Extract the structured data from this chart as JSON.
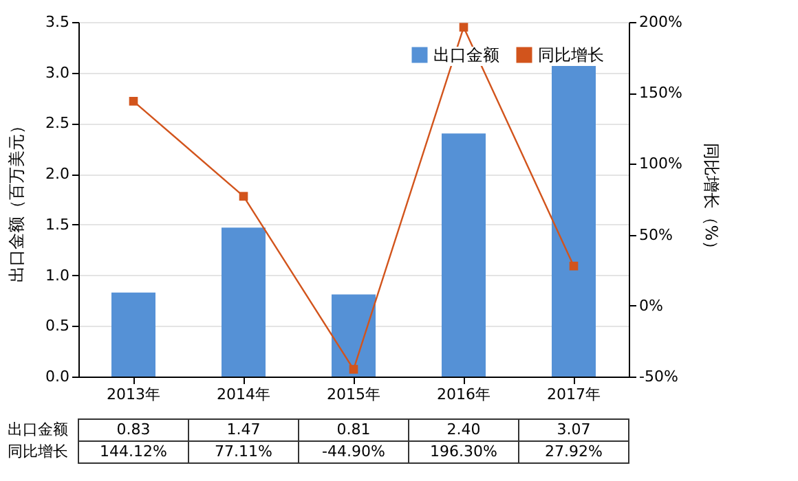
{
  "chart_data": {
    "type": "bar",
    "categories": [
      "2013年",
      "2014年",
      "2015年",
      "2016年",
      "2017年"
    ],
    "series": [
      {
        "name": "出口金额",
        "color": "#5591d6",
        "values": [
          0.83,
          1.47,
          0.81,
          2.4,
          3.07
        ],
        "value_labels": [
          "0.83",
          "1.47",
          "0.81",
          "2.40",
          "3.07"
        ]
      },
      {
        "name": "同比增长",
        "type": "line",
        "axis": "y2",
        "color": "#d2541c",
        "marker": "square",
        "values": [
          144.12,
          77.11,
          -44.9,
          196.3,
          27.92
        ],
        "value_labels": [
          "144.12%",
          "77.11%",
          "-44.90%",
          "196.30%",
          "27.92%"
        ]
      }
    ],
    "ylabel": "出口金额（百万美元）",
    "y2label": "同比增长（%）",
    "ylim": [
      0,
      3.5
    ],
    "yticks": [
      {
        "value": 0,
        "label": "0.0"
      },
      {
        "value": 0.5,
        "label": "0.5"
      },
      {
        "value": 1,
        "label": "1.0"
      },
      {
        "value": 1.5,
        "label": "1.5"
      },
      {
        "value": 2,
        "label": "2.0"
      },
      {
        "value": 2.5,
        "label": "2.5"
      },
      {
        "value": 3,
        "label": "3.0"
      },
      {
        "value": 3.5,
        "label": "3.5"
      }
    ],
    "y2lim": [
      -50,
      200
    ],
    "y2ticks": [
      {
        "value": -50,
        "label": "-50%"
      },
      {
        "value": 0,
        "label": "0%"
      },
      {
        "value": 50,
        "label": "50%"
      },
      {
        "value": 100,
        "label": "100%"
      },
      {
        "value": 150,
        "label": "150%"
      },
      {
        "value": 200,
        "label": "200%"
      }
    ],
    "grid": "y",
    "legend": "top right"
  }
}
